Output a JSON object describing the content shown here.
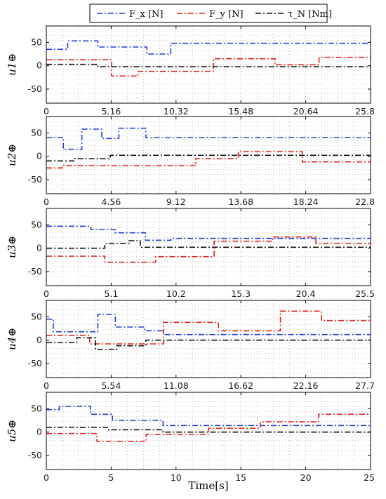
{
  "legend": {
    "entries": [
      {
        "label": "F_x [N]",
        "color": "#1f3fd6",
        "dash": "dashdot"
      },
      {
        "label": "F_y [N]",
        "color": "#e0201b",
        "dash": "dashdot"
      },
      {
        "label": "τ_N [Nm]",
        "color": "#111111",
        "dash": "dashdot"
      }
    ],
    "placement": "top-center"
  },
  "xlabel": "Time[s]",
  "chart_data": [
    {
      "type": "line",
      "ylabel": "u1⊕",
      "xlim": [
        0,
        25.8
      ],
      "ylim": [
        -80,
        85
      ],
      "xticks": [
        "0",
        "5.16",
        "10.32",
        "15.48",
        "20.64",
        "25.8"
      ],
      "yticks": [
        "50",
        "0",
        "-50"
      ],
      "grid": true,
      "series": [
        {
          "name": "F_x [N]",
          "x": [
            0,
            1.7,
            1.7,
            4.1,
            4.1,
            8.0,
            8.0,
            9.9,
            9.9,
            25.8
          ],
          "y": [
            35,
            35,
            53,
            53,
            40,
            40,
            25,
            25,
            48,
            48
          ]
        },
        {
          "name": "F_y [N]",
          "x": [
            0,
            5.2,
            5.2,
            7.3,
            7.3,
            13.3,
            13.3,
            18.2,
            18.2,
            21.7,
            21.7,
            25.8
          ],
          "y": [
            13,
            13,
            -22,
            -22,
            -12,
            -12,
            15,
            15,
            2,
            2,
            18,
            18
          ]
        },
        {
          "name": "τ_N [Nm]",
          "x": [
            0,
            4.1,
            4.1,
            7.5,
            7.5,
            25.8
          ],
          "y": [
            3,
            3,
            -2,
            -2,
            -2,
            -2
          ]
        }
      ]
    },
    {
      "type": "line",
      "ylabel": "u2⊕",
      "xlim": [
        0,
        22.8
      ],
      "ylim": [
        -80,
        85
      ],
      "xticks": [
        "0",
        "4.56",
        "9.12",
        "13.68",
        "18.24",
        "22.8"
      ],
      "yticks": [
        "50",
        "0",
        "-50"
      ],
      "grid": true,
      "series": [
        {
          "name": "F_x [N]",
          "x": [
            0,
            1.2,
            1.2,
            2.5,
            2.5,
            3.9,
            3.9,
            5.1,
            5.1,
            7.0,
            7.0,
            22.8
          ],
          "y": [
            40,
            40,
            15,
            15,
            58,
            58,
            38,
            38,
            60,
            60,
            40,
            40
          ]
        },
        {
          "name": "F_y [N]",
          "x": [
            0,
            1.2,
            1.2,
            10.5,
            10.5,
            13.5,
            13.5,
            18.0,
            18.0,
            22.8
          ],
          "y": [
            -25,
            -25,
            -20,
            -20,
            -5,
            -5,
            10,
            10,
            -12,
            -12
          ]
        },
        {
          "name": "τ_N [Nm]",
          "x": [
            0,
            2.0,
            2.0,
            4.5,
            4.5,
            22.8
          ],
          "y": [
            -10,
            -10,
            -5,
            -5,
            2,
            2
          ]
        }
      ]
    },
    {
      "type": "line",
      "ylabel": "u3⊕",
      "xlim": [
        0,
        25.5
      ],
      "ylim": [
        -80,
        85
      ],
      "xticks": [
        "0",
        "5.1",
        "10.2",
        "15.3",
        "20.4",
        "25.5"
      ],
      "yticks": [
        "50",
        "0",
        "-50"
      ],
      "grid": true,
      "series": [
        {
          "name": "F_x [N]",
          "x": [
            0,
            3.5,
            3.5,
            5.4,
            5.4,
            7.8,
            7.8,
            9.8,
            9.8,
            25.5
          ],
          "y": [
            47,
            47,
            40,
            40,
            33,
            33,
            17,
            17,
            21,
            21
          ]
        },
        {
          "name": "F_y [N]",
          "x": [
            0,
            4.6,
            4.6,
            8.6,
            8.6,
            13.2,
            13.2,
            17.8,
            17.8,
            21.2,
            21.2,
            25.5
          ],
          "y": [
            -17,
            -17,
            -30,
            -30,
            -18,
            -18,
            15,
            15,
            24,
            24,
            10,
            10
          ]
        },
        {
          "name": "τ_N [Nm]",
          "x": [
            0,
            4.6,
            4.6,
            6.5,
            6.5,
            7.4,
            7.4,
            25.5
          ],
          "y": [
            0,
            0,
            10,
            10,
            16,
            16,
            2,
            2
          ]
        }
      ]
    },
    {
      "type": "line",
      "ylabel": "u4⊕",
      "xlim": [
        0,
        27.7
      ],
      "ylim": [
        -80,
        85
      ],
      "xticks": [
        "0",
        "5.54",
        "11.08",
        "16.62",
        "22.16",
        "27.7"
      ],
      "yticks": [
        "50",
        "0",
        "-50"
      ],
      "grid": true,
      "series": [
        {
          "name": "F_x [N]",
          "x": [
            0,
            0.6,
            0.6,
            4.4,
            4.4,
            5.9,
            5.9,
            8.4,
            8.4,
            10.0,
            10.0,
            27.7
          ],
          "y": [
            45,
            45,
            18,
            18,
            55,
            55,
            28,
            28,
            20,
            20,
            12,
            12
          ]
        },
        {
          "name": "F_y [N]",
          "x": [
            0,
            3.7,
            3.7,
            10.0,
            10.0,
            14.7,
            14.7,
            20.0,
            20.0,
            23.5,
            23.5,
            27.7
          ],
          "y": [
            10,
            10,
            -8,
            -8,
            38,
            38,
            20,
            20,
            62,
            62,
            42,
            42
          ]
        },
        {
          "name": "τ_N [Nm]",
          "x": [
            0,
            2.6,
            2.6,
            4.2,
            4.2,
            6.0,
            6.0,
            8.5,
            8.5,
            27.7
          ],
          "y": [
            -5,
            -5,
            5,
            5,
            -20,
            -20,
            -12,
            -12,
            0,
            0
          ]
        }
      ]
    },
    {
      "type": "line",
      "ylabel": "u5⊕",
      "xlim": [
        0,
        25
      ],
      "ylim": [
        -80,
        85
      ],
      "xticks": [
        "0",
        "5",
        "10",
        "15",
        "20",
        "25"
      ],
      "yticks": [
        "50",
        "0",
        "-50"
      ],
      "grid": true,
      "series": [
        {
          "name": "F_x [N]",
          "x": [
            0,
            1.0,
            1.0,
            3.4,
            3.4,
            5.1,
            5.1,
            9.0,
            9.0,
            25
          ],
          "y": [
            48,
            48,
            55,
            55,
            38,
            38,
            25,
            25,
            14,
            14
          ]
        },
        {
          "name": "F_y [N]",
          "x": [
            0,
            3.9,
            3.9,
            7.7,
            7.7,
            12.5,
            12.5,
            16.5,
            16.5,
            21.0,
            21.0,
            25
          ],
          "y": [
            -3,
            -3,
            -20,
            -20,
            -5,
            -5,
            8,
            8,
            22,
            22,
            38,
            38
          ]
        },
        {
          "name": "τ_N [Nm]",
          "x": [
            0,
            4.8,
            4.8,
            9.0,
            9.0,
            25
          ],
          "y": [
            10,
            10,
            5,
            5,
            0,
            0
          ]
        }
      ]
    }
  ]
}
